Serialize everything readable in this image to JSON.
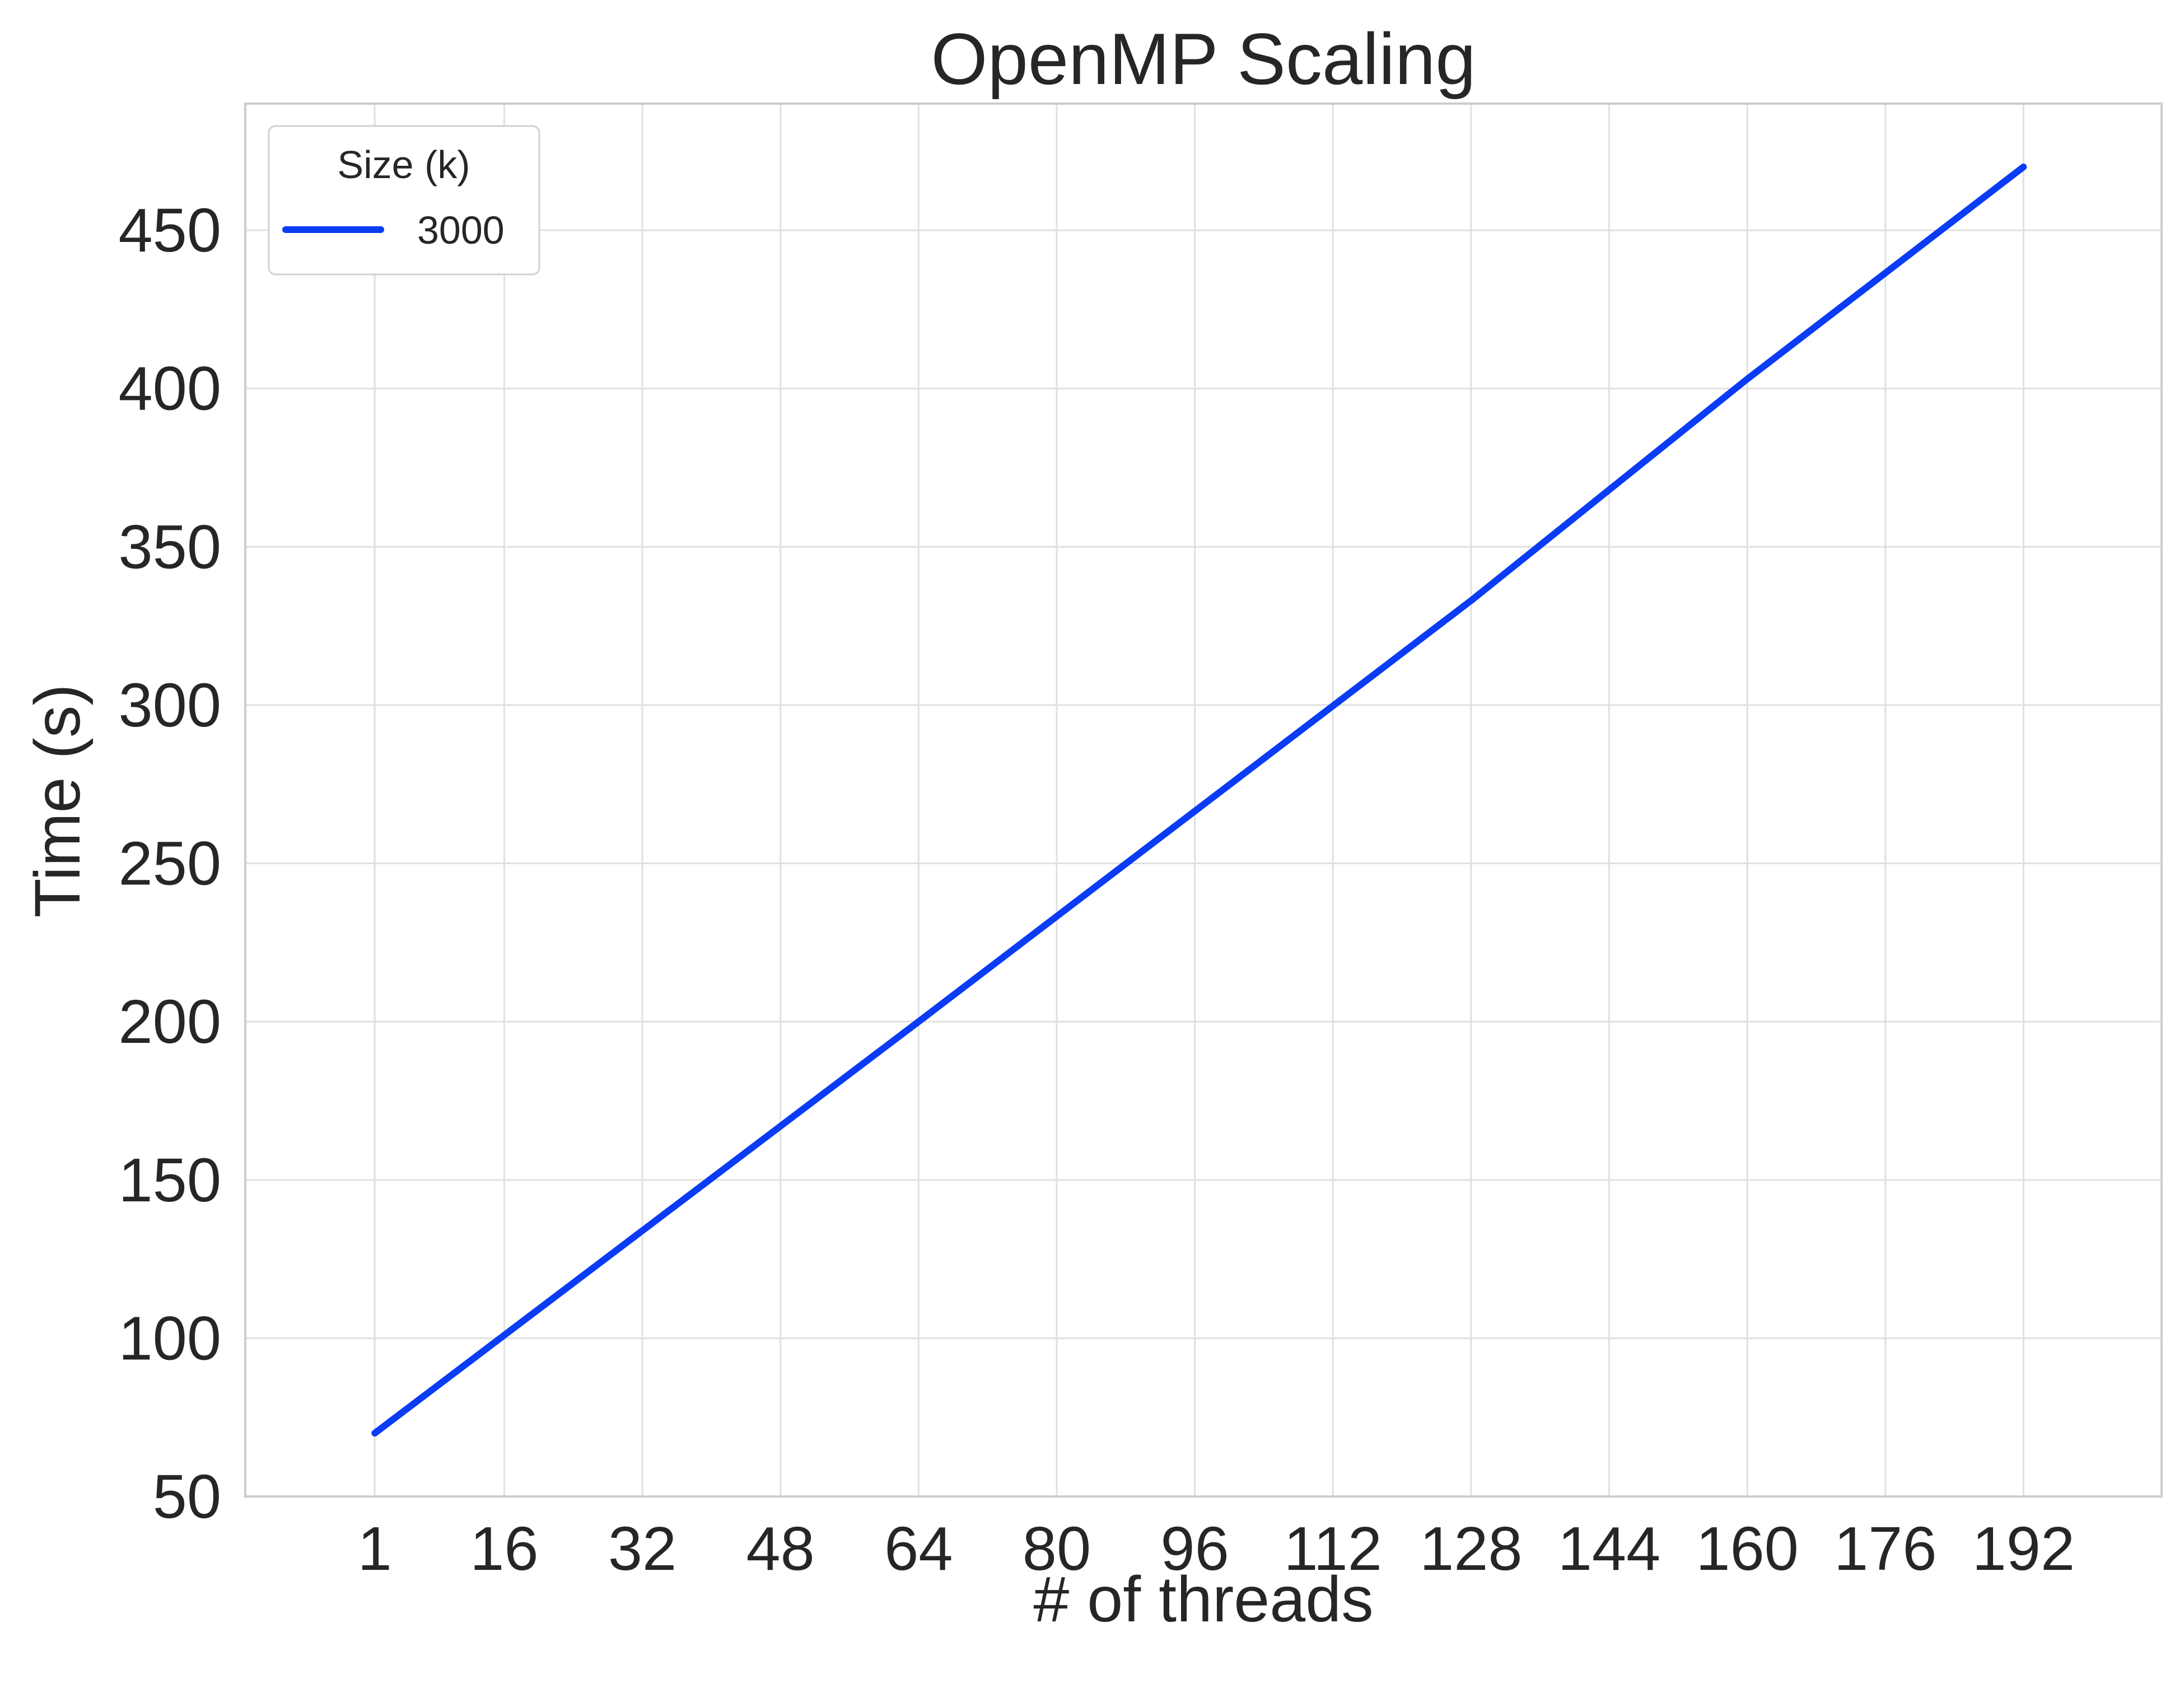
{
  "chart_data": {
    "type": "line",
    "title": "OpenMP Scaling",
    "xlabel": "# of threads",
    "ylabel": "Time (s)",
    "xlim": [
      -14,
      208
    ],
    "ylim": [
      50,
      490
    ],
    "x_ticks": [
      1,
      16,
      32,
      48,
      64,
      80,
      96,
      112,
      128,
      144,
      160,
      176,
      192
    ],
    "y_ticks": [
      50,
      100,
      150,
      200,
      250,
      300,
      350,
      400,
      450
    ],
    "grid": true,
    "legend": {
      "title": "Size (k)",
      "position": "top-left"
    },
    "series": [
      {
        "name": "3000",
        "color": "#0a3cf5",
        "x": [
          1,
          64,
          128,
          160,
          192
        ],
        "y": [
          70,
          200,
          333,
          403,
          470
        ]
      }
    ]
  }
}
